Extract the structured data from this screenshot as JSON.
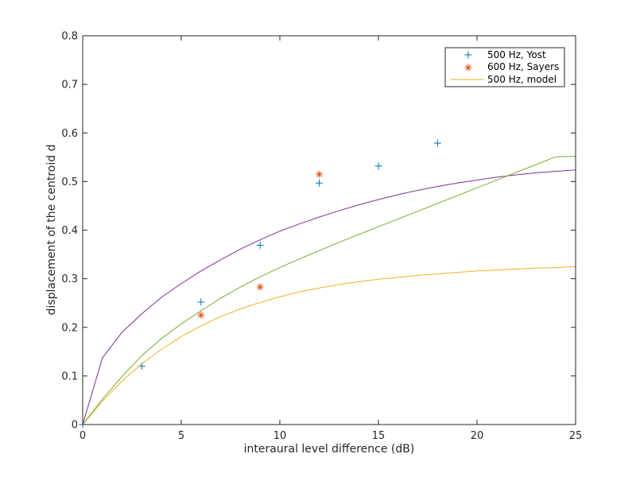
{
  "chart_data": {
    "type": "scatter",
    "xlabel": "interaural level difference (dB)",
    "ylabel": "displacement of the centroid d",
    "xlim": [
      0,
      25
    ],
    "ylim": [
      0,
      0.8
    ],
    "xticks": [
      0,
      5,
      10,
      15,
      20,
      25
    ],
    "yticks": [
      0,
      0.1,
      0.2,
      0.3,
      0.4,
      0.5,
      0.6,
      0.7,
      0.8
    ],
    "xtick_labels": [
      "0",
      "5",
      "10",
      "15",
      "20",
      "25"
    ],
    "ytick_labels": [
      "0",
      "0.1",
      "0.2",
      "0.3",
      "0.4",
      "0.5",
      "0.6",
      "0.7",
      "0.8"
    ],
    "grid": false,
    "legend_position": "top-right",
    "series": [
      {
        "name": "500 Hz, Yost",
        "kind": "marker",
        "marker": "plus",
        "color": "#0072bd",
        "x": [
          0,
          3,
          6,
          9,
          12,
          15,
          18
        ],
        "y": [
          0,
          0.12,
          0.252,
          0.369,
          0.497,
          0.532,
          0.579
        ]
      },
      {
        "name": "600 Hz, Sayers",
        "kind": "marker",
        "marker": "asterisk",
        "color": "#d95319",
        "x": [
          6,
          9,
          12
        ],
        "y": [
          0.225,
          0.283,
          0.515
        ]
      },
      {
        "name": "500 Hz, model",
        "kind": "line",
        "color": "#edb120",
        "x": [
          0,
          1,
          2,
          3,
          4,
          5,
          6,
          7,
          8,
          9,
          10,
          11,
          12,
          13,
          14,
          15,
          16,
          17,
          18,
          19,
          20,
          21,
          22,
          23,
          24,
          25
        ],
        "y": [
          0,
          0.048,
          0.09,
          0.125,
          0.155,
          0.181,
          0.203,
          0.222,
          0.238,
          0.251,
          0.263,
          0.273,
          0.281,
          0.288,
          0.294,
          0.299,
          0.303,
          0.307,
          0.31,
          0.313,
          0.316,
          0.318,
          0.32,
          0.322,
          0.323,
          0.325
        ]
      },
      {
        "kind": "line",
        "color": "#7e2f8e",
        "x": [
          0,
          1,
          2,
          3,
          4,
          5,
          6,
          7,
          8,
          9,
          10,
          11,
          12,
          13,
          14,
          15,
          16,
          17,
          18,
          19,
          20,
          21,
          22,
          23,
          24,
          25
        ],
        "y": [
          0,
          0.137,
          0.19,
          0.228,
          0.262,
          0.29,
          0.316,
          0.339,
          0.361,
          0.38,
          0.398,
          0.413,
          0.427,
          0.44,
          0.452,
          0.463,
          0.473,
          0.482,
          0.49,
          0.497,
          0.503,
          0.509,
          0.514,
          0.518,
          0.521,
          0.524
        ]
      },
      {
        "kind": "line",
        "color": "#77ac30",
        "x": [
          0,
          1,
          2,
          3,
          4,
          5,
          6,
          7,
          8,
          9,
          10,
          11,
          12,
          13,
          14,
          15,
          16,
          17,
          18,
          19,
          20,
          21,
          22,
          23,
          24,
          25
        ],
        "y": [
          0,
          0.052,
          0.099,
          0.142,
          0.177,
          0.207,
          0.234,
          0.26,
          0.283,
          0.304,
          0.323,
          0.341,
          0.358,
          0.375,
          0.391,
          0.407,
          0.423,
          0.439,
          0.455,
          0.471,
          0.487,
          0.503,
          0.519,
          0.535,
          0.551,
          0.552
        ]
      }
    ]
  }
}
